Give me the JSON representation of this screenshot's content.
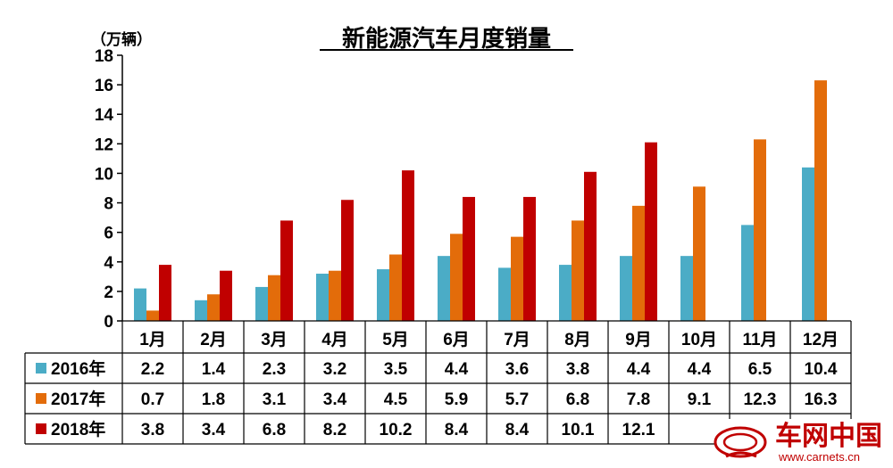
{
  "chart_data": {
    "type": "bar",
    "title": "新能源汽车月度销量",
    "unit_label": "（万辆）",
    "ylim": [
      0,
      18
    ],
    "yticks": [
      0,
      2,
      4,
      6,
      8,
      10,
      12,
      14,
      16,
      18
    ],
    "categories": [
      "1月",
      "2月",
      "3月",
      "4月",
      "5月",
      "6月",
      "7月",
      "8月",
      "9月",
      "10月",
      "11月",
      "12月"
    ],
    "series": [
      {
        "name": "2016年",
        "color": "#4bacc6",
        "values": [
          2.2,
          1.4,
          2.3,
          3.2,
          3.5,
          4.4,
          3.6,
          3.8,
          4.4,
          4.4,
          6.5,
          10.4
        ]
      },
      {
        "name": "2017年",
        "color": "#e36c0a",
        "values": [
          0.7,
          1.8,
          3.1,
          3.4,
          4.5,
          5.9,
          5.7,
          6.8,
          7.8,
          9.1,
          12.3,
          16.3
        ]
      },
      {
        "name": "2018年",
        "color": "#c00000",
        "values": [
          3.8,
          3.4,
          6.8,
          8.2,
          10.2,
          8.4,
          8.4,
          10.1,
          12.1,
          null,
          null,
          null
        ]
      }
    ],
    "table_labels": [
      [
        "2.2",
        "1.4",
        "2.3",
        "3.2",
        "3.5",
        "4.4",
        "3.6",
        "3.8",
        "4.4",
        "4.4",
        "6.5",
        "10.4"
      ],
      [
        "0.7",
        "1.8",
        "3.1",
        "3.4",
        "4.5",
        "5.9",
        "5.7",
        "6.8",
        "7.8",
        "9.1",
        "12.3",
        "16.3"
      ],
      [
        "3.8",
        "3.4",
        "6.8",
        "8.2",
        "10.2",
        "8.4",
        "8.4",
        "10.1",
        "12.1",
        "",
        "",
        ""
      ]
    ],
    "grid": false,
    "legend": "data-table"
  },
  "watermark": {
    "name": "车网中国",
    "url": "www.carnets.cn",
    "color": "#c00000"
  }
}
